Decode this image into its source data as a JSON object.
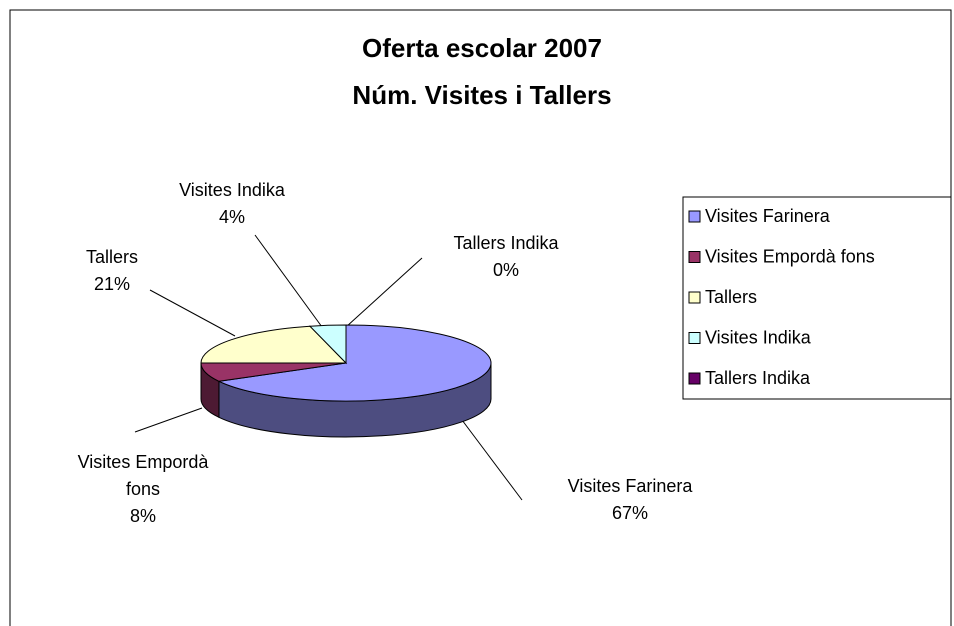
{
  "chart_data": {
    "type": "pie",
    "title": [
      "Oferta escolar 2007",
      "Núm. Visites i Tallers"
    ],
    "categories": [
      "Visites Farinera",
      "Visites Empordà fons",
      "Tallers",
      "Visites Indika",
      "Tallers Indika"
    ],
    "values": [
      67,
      8,
      21,
      4,
      0
    ],
    "value_labels": [
      "67%",
      "8%",
      "21%",
      "4%",
      "0%"
    ],
    "colors": [
      "#9999ff",
      "#993366",
      "#ffffcc",
      "#ccffff",
      "#660066"
    ],
    "legend": "right"
  }
}
